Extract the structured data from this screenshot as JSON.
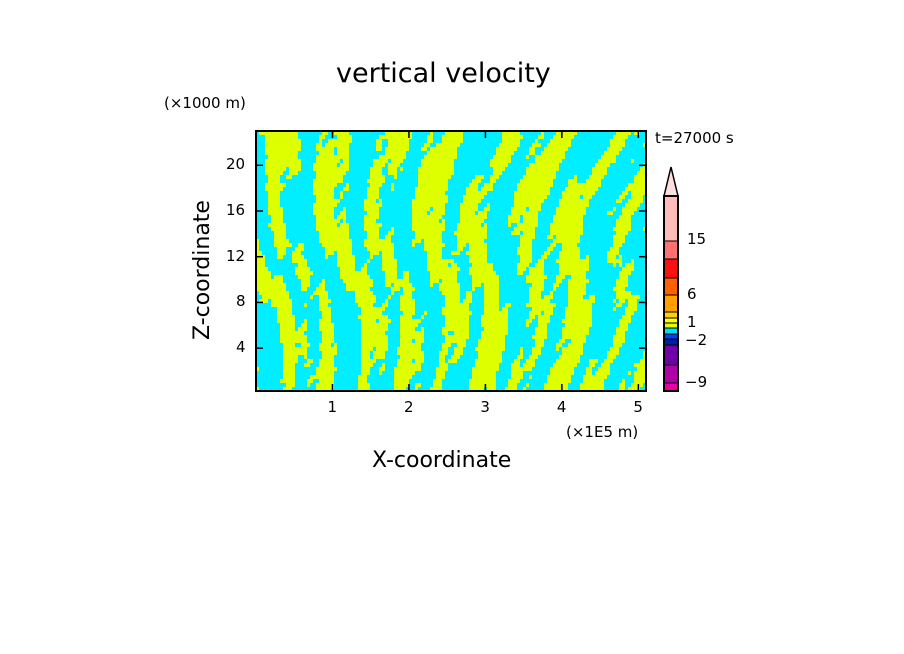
{
  "chart_data": {
    "type": "heatmap",
    "title": "vertical velocity",
    "xlabel": "X-coordinate",
    "ylabel": "Z-coordinate",
    "x_unit": "(×1E5 m)",
    "y_unit": "(×1000 m)",
    "time_label": "t=27000 s",
    "xlim": [
      0,
      5.1
    ],
    "ylim": [
      0.25,
      23
    ],
    "x_ticks": [
      "1",
      "2",
      "3",
      "4",
      "5"
    ],
    "x_tick_values": [
      1,
      2,
      3,
      4,
      5
    ],
    "y_ticks": [
      "4",
      "8",
      "12",
      "16",
      "20"
    ],
    "y_tick_values": [
      4,
      8,
      12,
      16,
      20
    ],
    "field_colors": {
      "positive_small": "#ddff00",
      "negative_small": "#00eeff"
    },
    "colorbar": {
      "labels": [
        "15",
        "6",
        "1",
        "−2",
        "−9"
      ],
      "colors_top_to_bottom": [
        "#ffdede",
        "#ffbaba",
        "#ff7070",
        "#ff1010",
        "#ff6000",
        "#ffa000",
        "#ffd000",
        "#ffff00",
        "#ddff00",
        "#00e0f0",
        "#0040ff",
        "#0020a0",
        "#7000a8",
        "#b000a8",
        "#e800a8"
      ]
    }
  }
}
